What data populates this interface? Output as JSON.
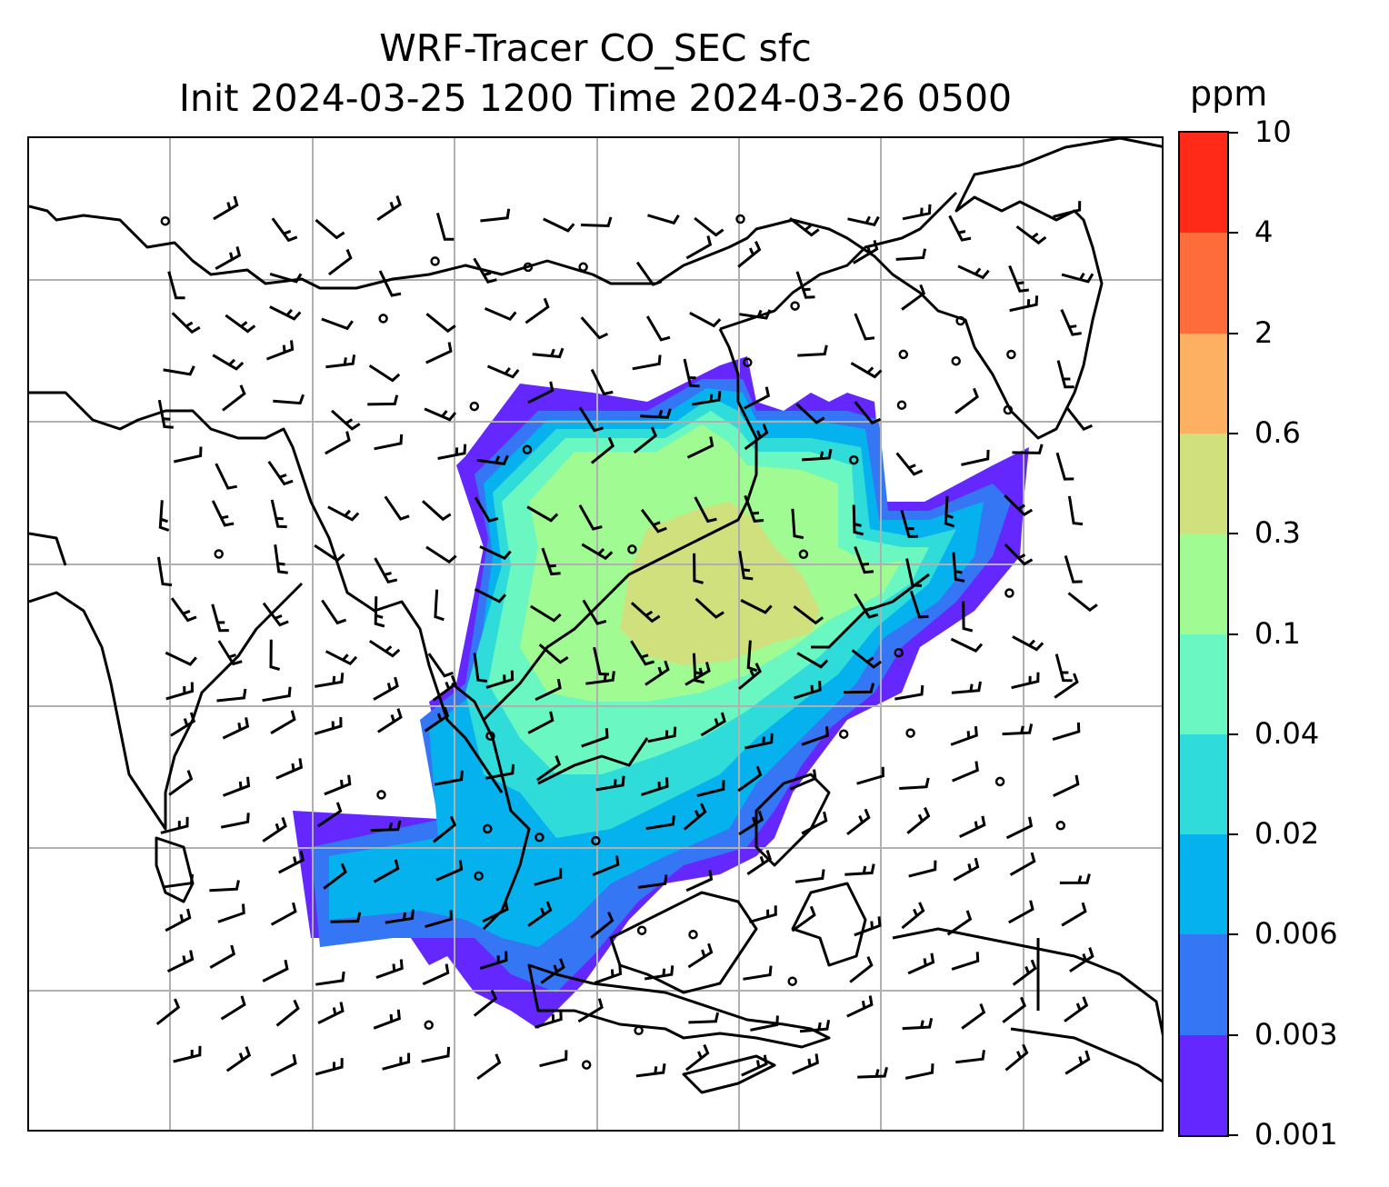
{
  "title": {
    "line1": "WRF-Tracer CO_SEC sfc",
    "line2": "Init 2024-03-25 1200 Time 2024-03-26 0500"
  },
  "colorbar": {
    "unit": "ppm",
    "levels": [
      "0.001",
      "0.003",
      "0.006",
      "0.02",
      "0.04",
      "0.1",
      "0.3",
      "0.6",
      "2",
      "4",
      "10"
    ],
    "colors": [
      "#6428ff",
      "#3576f5",
      "#06b2ee",
      "#2fdcd9",
      "#6af7c1",
      "#9ffb92",
      "#cfe07c",
      "#fdb061",
      "#fd6c3a",
      "#ff2a18"
    ]
  },
  "map": {
    "gridlines": true,
    "coastlines": true,
    "field": "CO_SEC tracer concentration at surface",
    "overlay": "wind barbs"
  }
}
